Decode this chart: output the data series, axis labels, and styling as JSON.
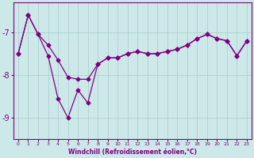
{
  "x": [
    0,
    1,
    2,
    3,
    4,
    5,
    6,
    7,
    8,
    9,
    10,
    11,
    12,
    13,
    14,
    15,
    16,
    17,
    18,
    19,
    20,
    21,
    22,
    23
  ],
  "y_top": [
    -7.5,
    -6.6,
    -7.05,
    -7.3,
    -7.65,
    -8.05,
    -8.1,
    -8.1,
    -7.75,
    -7.6,
    -7.6,
    -7.5,
    -7.45,
    -7.5,
    -7.5,
    -7.45,
    -7.4,
    -7.3,
    -7.15,
    -7.05,
    -7.15,
    -7.2,
    -7.55,
    -7.2
  ],
  "y_bot": [
    -7.5,
    -6.6,
    -7.05,
    -7.55,
    -8.55,
    -9.0,
    -8.35,
    -8.65,
    -7.75,
    -7.6,
    -7.6,
    -7.5,
    -7.45,
    -7.5,
    -7.5,
    -7.45,
    -7.4,
    -7.3,
    -7.15,
    -7.05,
    -7.15,
    -7.2,
    -7.55,
    -7.2
  ],
  "line_color": "#800080",
  "background_color": "#cce8e8",
  "grid_color": "#a8cccc",
  "xlabel": "Windchill (Refroidissement éolien,°C)",
  "ylim": [
    -9.5,
    -6.3
  ],
  "xlim": [
    -0.5,
    23.5
  ],
  "yticks": [
    -9,
    -8,
    -7
  ],
  "xticks": [
    0,
    1,
    2,
    3,
    4,
    5,
    6,
    7,
    8,
    9,
    10,
    11,
    12,
    13,
    14,
    15,
    16,
    17,
    18,
    19,
    20,
    21,
    22,
    23
  ],
  "marker": "D",
  "markersize": 2.5,
  "linewidth": 0.9
}
